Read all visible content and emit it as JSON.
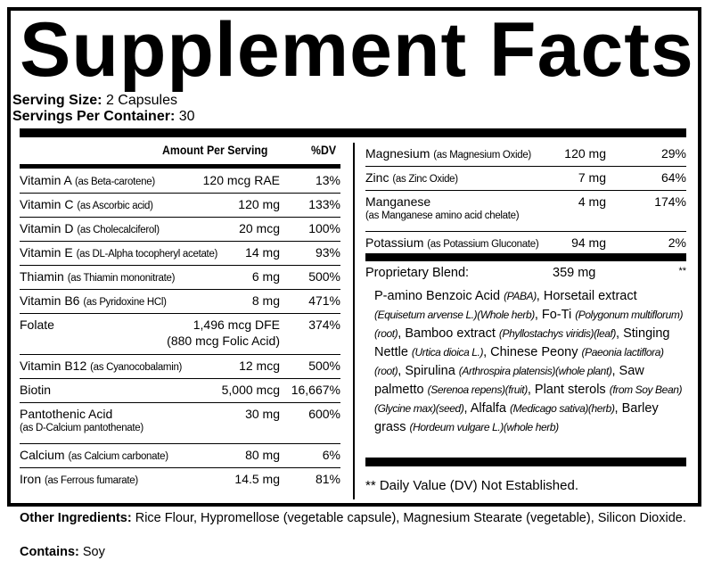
{
  "title": "Supplement Facts",
  "serving_size": {
    "label": "Serving Size:",
    "value": "2 Capsules"
  },
  "servings_per_container": {
    "label": "Servings Per Container:",
    "value": "30"
  },
  "header": {
    "amount": "Amount Per Serving",
    "dv": "%DV"
  },
  "left_rows": [
    {
      "name": "Vitamin A",
      "source": "(as Beta-carotene)",
      "amount": "120 mcg RAE",
      "dv": "13%"
    },
    {
      "name": "Vitamin C",
      "source": "(as Ascorbic acid)",
      "amount": "120 mg",
      "dv": "133%"
    },
    {
      "name": "Vitamin D",
      "source": "(as Cholecalciferol)",
      "amount": "20 mcg",
      "dv": "100%"
    },
    {
      "name": "Vitamin E",
      "source": "(as DL-Alpha tocopheryl acetate)",
      "amount": "14 mg",
      "dv": "93%"
    },
    {
      "name": "Thiamin",
      "source": "(as Thiamin mononitrate)",
      "amount": "6 mg",
      "dv": "500%"
    },
    {
      "name": "Vitamin B6",
      "source": "(as Pyridoxine HCl)",
      "amount": "8 mg",
      "dv": "471%"
    },
    {
      "name": "Folate",
      "source": "",
      "amount": "1,496 mcg DFE",
      "amount2": "(880 mcg Folic Acid)",
      "dv": "374%"
    },
    {
      "name": "Vitamin B12",
      "source": "(as Cyanocobalamin)",
      "amount": "12 mcg",
      "dv": "500%"
    },
    {
      "name": "Biotin",
      "source": "",
      "amount": "5,000 mcg",
      "dv": "16,667%"
    },
    {
      "name": "Pantothenic Acid",
      "source2": "(as  D-Calcium pantothenate)",
      "amount": "30 mg",
      "dv": "600%"
    },
    {
      "name": "Calcium",
      "source": "(as Calcium carbonate)",
      "amount": "80 mg",
      "dv": "6%"
    },
    {
      "name": "Iron",
      "source": "(as Ferrous fumarate)",
      "amount": "14.5 mg",
      "dv": "81%"
    }
  ],
  "right_rows": [
    {
      "name": "Magnesium",
      "source": "(as Magnesium Oxide)",
      "amount": "120 mg",
      "dv": "29%"
    },
    {
      "name": "Zinc",
      "source": "(as Zinc Oxide)",
      "amount": "7 mg",
      "dv": "64%"
    },
    {
      "name": "Manganese",
      "source2": "(as Manganese amino acid chelate)",
      "amount": "4 mg",
      "dv": "174%"
    },
    {
      "name": "Potassium",
      "source": "(as Potassium Gluconate)",
      "amount": "94 mg",
      "dv": "2%"
    }
  ],
  "blend": {
    "label": "Proprietary Blend:",
    "amount": "359 mg",
    "dv": "**",
    "parts": [
      [
        "P-amino Benzoic Acid ",
        ""
      ],
      [
        "(PABA)",
        "i"
      ],
      [
        ", Horsetail extract ",
        ""
      ],
      [
        "(Equisetum arvense L.)(Whole herb)",
        "i"
      ],
      [
        ", Fo-Ti ",
        ""
      ],
      [
        "(Polygonum multiflorum)(root)",
        "i"
      ],
      [
        ", Bamboo extract ",
        ""
      ],
      [
        "(Phyllostachys viridis)(leaf)",
        "i"
      ],
      [
        ", Stinging Nettle  ",
        ""
      ],
      [
        "(Urtica dioica L.)",
        "i"
      ],
      [
        ", Chinese Peony ",
        ""
      ],
      [
        "(Paeonia lactiflora)(root)",
        "i"
      ],
      [
        ", Spirulina ",
        ""
      ],
      [
        "(Arthrospira platensis)(whole plant)",
        "i"
      ],
      [
        ", Saw palmetto ",
        ""
      ],
      [
        "(Serenoa repens)(fruit)",
        "i"
      ],
      [
        ", Plant sterols ",
        ""
      ],
      [
        "(from Soy Bean)(Glycine max)(seed)",
        "i"
      ],
      [
        ", Alfalfa ",
        ""
      ],
      [
        "(Medicago sativa)(herb)",
        "i"
      ],
      [
        ", Barley grass ",
        ""
      ],
      [
        "(Hordeum vulgare L.)(whole herb)",
        "i"
      ]
    ]
  },
  "dv_note": "** Daily Value (DV) Not Established.",
  "other_ingredients": {
    "label": "Other Ingredients:",
    "value": "Rice Flour, Hypromellose (vegetable capsule), Magnesium Stearate (vegetable), Silicon Dioxide."
  },
  "contains": {
    "label": "Contains:",
    "value": "Soy"
  }
}
